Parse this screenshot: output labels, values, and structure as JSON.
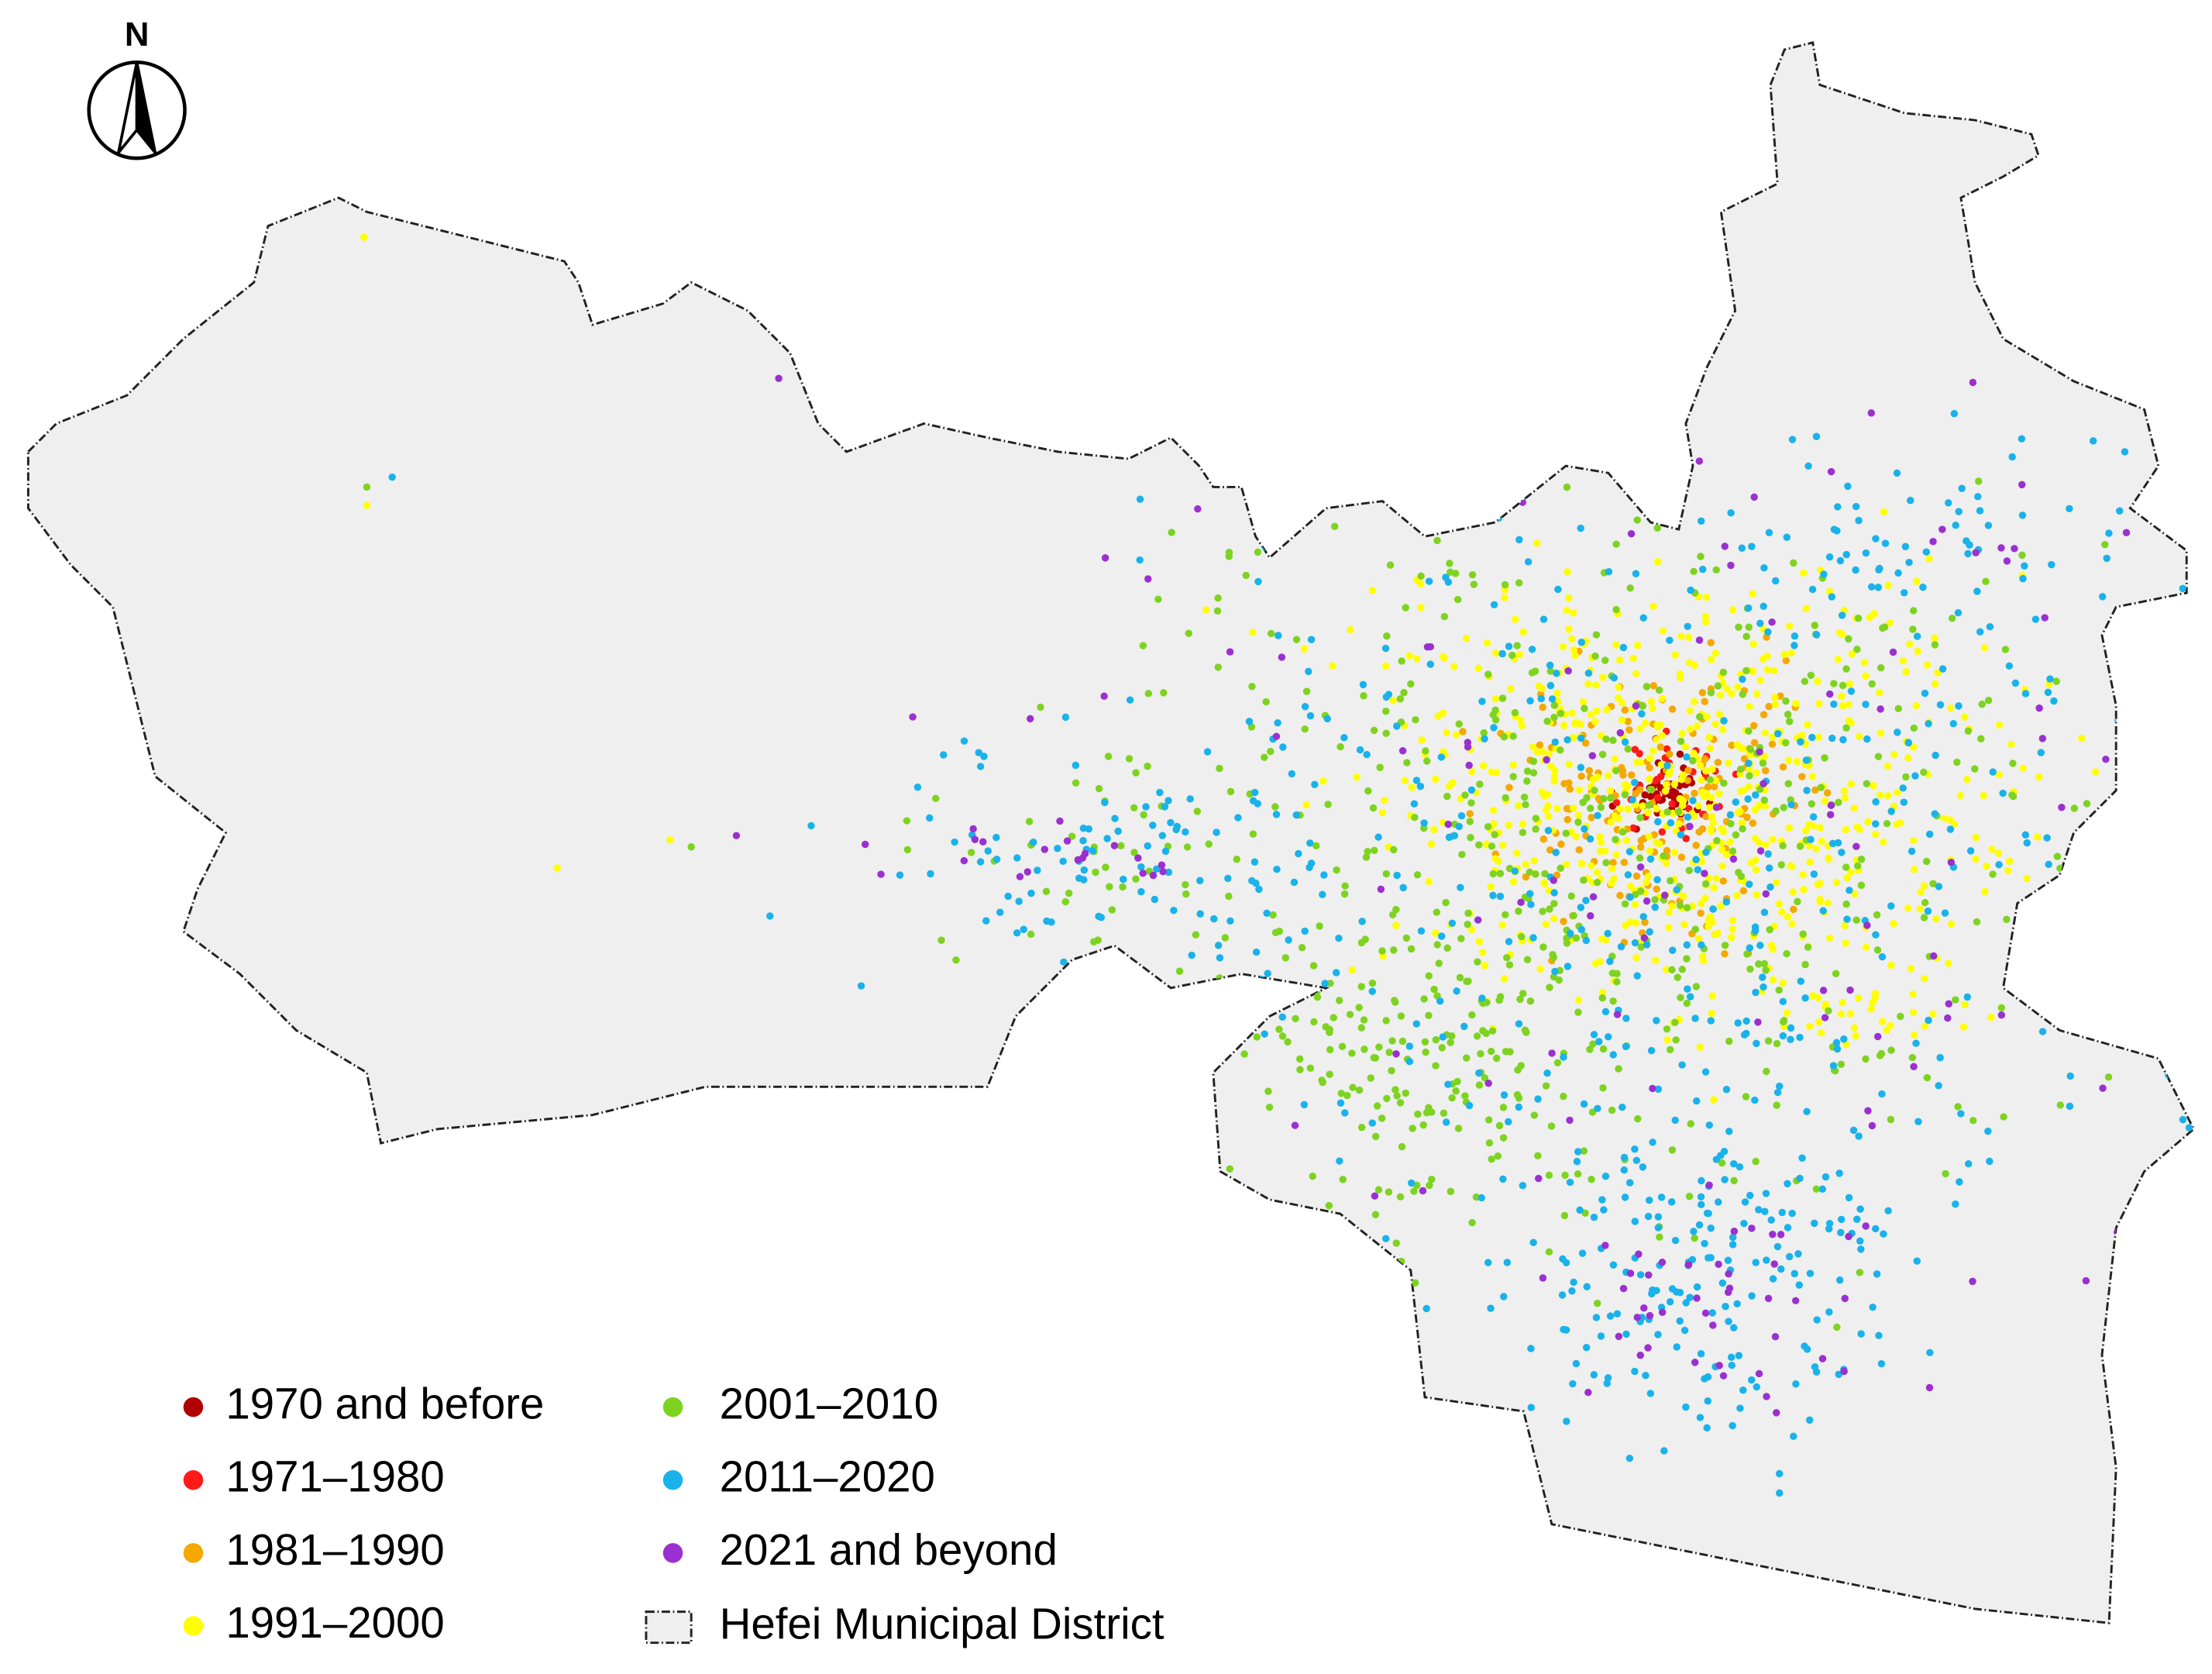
{
  "north_label": "N",
  "legend": {
    "items": [
      {
        "label": "1970 and before",
        "color": "#b00000"
      },
      {
        "label": "1971–1980",
        "color": "#ff1a1a"
      },
      {
        "label": "1981–1990",
        "color": "#f5a800"
      },
      {
        "label": "1991–2000",
        "color": "#ffff00"
      },
      {
        "label": "2001–2010",
        "color": "#7ed321"
      },
      {
        "label": "2011–2020",
        "color": "#1ab2ea"
      },
      {
        "label": "2021 and beyond",
        "color": "#9b30d0"
      }
    ],
    "boundary_label": "Hefei Municipal District"
  }
}
